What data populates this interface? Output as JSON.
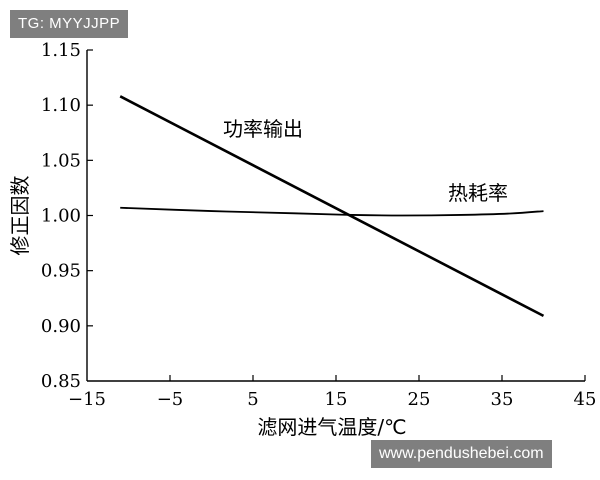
{
  "watermarks": {
    "top_left": "TG: MYYJJPP",
    "bottom_right": "www.pendushebei.com"
  },
  "chart_data": {
    "type": "line",
    "title": "",
    "xlabel": "滤网进气温度/℃",
    "ylabel": "修正因数",
    "xlim": [
      -15,
      45
    ],
    "ylim": [
      0.85,
      1.15
    ],
    "x_ticks": [
      -15,
      -5,
      5,
      15,
      25,
      35,
      45
    ],
    "x_tick_labels": [
      "−15",
      "−5",
      "5",
      "15",
      "25",
      "35",
      "45"
    ],
    "y_ticks": [
      0.85,
      0.9,
      0.95,
      1.0,
      1.05,
      1.1,
      1.15
    ],
    "y_tick_labels": [
      "0.85",
      "0.90",
      "0.95",
      "1.00",
      "1.05",
      "1.10",
      "1.15"
    ],
    "grid": false,
    "series": [
      {
        "name": "功率输出",
        "color": "#000000",
        "x": [
          -11,
          40
        ],
        "y": [
          1.108,
          0.909
        ]
      },
      {
        "name": "热耗率",
        "color": "#000000",
        "x": [
          -11,
          0,
          10,
          17,
          23,
          30,
          36,
          40
        ],
        "y": [
          1.007,
          1.004,
          1.002,
          1.0005,
          1.0,
          1.0005,
          1.0018,
          1.004
        ]
      }
    ]
  }
}
